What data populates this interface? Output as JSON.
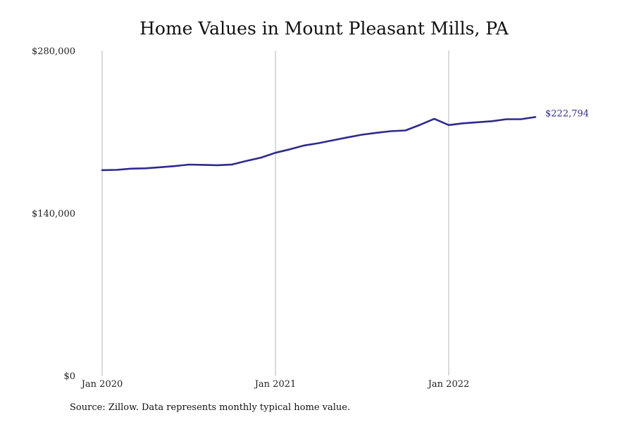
{
  "chart_data": {
    "type": "line",
    "title": "Home Values in Mount Pleasant Mills, PA",
    "xlabel": "",
    "ylabel": "",
    "ylim": [
      0,
      280000
    ],
    "y_ticks": [
      0,
      140000,
      280000
    ],
    "y_tick_labels": [
      "$0",
      "$140,000",
      "$280,000"
    ],
    "x_ticks": [
      "2020-01",
      "2021-01",
      "2022-01"
    ],
    "x_tick_labels": [
      "Jan 2020",
      "Jan 2021",
      "Jan 2022"
    ],
    "grid": "vertical lines at x ticks",
    "line_color": "#2e2a8c",
    "series": [
      {
        "x": [
          "2020-01",
          "2020-02",
          "2020-03",
          "2020-04",
          "2020-05",
          "2020-06",
          "2020-07",
          "2020-08",
          "2020-09",
          "2020-10",
          "2020-11",
          "2020-12",
          "2021-01",
          "2021-02",
          "2021-03",
          "2021-04",
          "2021-05",
          "2021-06",
          "2021-07",
          "2021-08",
          "2021-09",
          "2021-10",
          "2021-11",
          "2021-12",
          "2022-01",
          "2022-02",
          "2022-03",
          "2022-04",
          "2022-05",
          "2022-06",
          "2022-07"
        ],
        "values": [
          177000,
          177300,
          178300,
          178600,
          179500,
          180500,
          181800,
          181600,
          181300,
          181900,
          185000,
          187800,
          192000,
          195000,
          198300,
          200300,
          202800,
          205300,
          207600,
          209200,
          210600,
          211200,
          216000,
          221300,
          215900,
          217400,
          218300,
          219200,
          220900,
          220900,
          222794
        ]
      }
    ],
    "end_label": "$222,794"
  },
  "source_note": "Source: Zillow. Data represents monthly typical home value."
}
